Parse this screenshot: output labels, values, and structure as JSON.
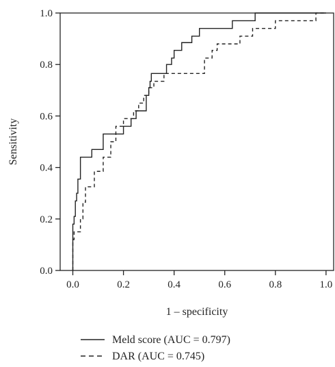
{
  "chart_data": {
    "type": "line",
    "title": "",
    "xlabel": "1 – specificity",
    "ylabel": "Sensitivity",
    "xlim": [
      -0.05,
      1.03
    ],
    "ylim": [
      0,
      1
    ],
    "xticks": [
      "0.0",
      "0.2",
      "0.4",
      "0.6",
      "0.8",
      "1.0"
    ],
    "yticks": [
      "0.0",
      "0.2",
      "0.4",
      "0.6",
      "0.8",
      "1.0"
    ],
    "grid": false,
    "legend_position": "bottom",
    "series": [
      {
        "name": "Meld score (AUC = 0.797)",
        "style": "solid",
        "color": "#222222",
        "x": [
          0.0,
          0.0,
          0.005,
          0.005,
          0.01,
          0.01,
          0.015,
          0.015,
          0.02,
          0.02,
          0.03,
          0.03,
          0.075,
          0.075,
          0.12,
          0.12,
          0.2,
          0.2,
          0.23,
          0.23,
          0.25,
          0.25,
          0.29,
          0.29,
          0.3,
          0.3,
          0.305,
          0.305,
          0.31,
          0.31,
          0.33,
          0.33,
          0.37,
          0.37,
          0.39,
          0.39,
          0.4,
          0.4,
          0.43,
          0.43,
          0.47,
          0.47,
          0.5,
          0.5,
          0.52,
          0.52,
          0.63,
          0.63,
          0.72,
          0.72,
          0.94,
          0.94,
          1.0
        ],
        "y": [
          0.0,
          0.18,
          0.18,
          0.21,
          0.21,
          0.27,
          0.27,
          0.3,
          0.3,
          0.355,
          0.355,
          0.44,
          0.44,
          0.47,
          0.47,
          0.53,
          0.53,
          0.56,
          0.56,
          0.59,
          0.59,
          0.62,
          0.62,
          0.68,
          0.68,
          0.71,
          0.71,
          0.735,
          0.735,
          0.765,
          0.765,
          0.765,
          0.765,
          0.8,
          0.8,
          0.825,
          0.825,
          0.855,
          0.855,
          0.885,
          0.885,
          0.91,
          0.91,
          0.94,
          0.94,
          0.94,
          0.94,
          0.97,
          0.97,
          1.0,
          1.0,
          1.0,
          1.0
        ]
      },
      {
        "name": "DAR (AUC = 0.745)",
        "style": "dashed",
        "color": "#222222",
        "x": [
          0.0,
          0.0,
          0.005,
          0.005,
          0.03,
          0.03,
          0.04,
          0.04,
          0.05,
          0.05,
          0.085,
          0.085,
          0.12,
          0.12,
          0.15,
          0.15,
          0.17,
          0.17,
          0.2,
          0.2,
          0.24,
          0.24,
          0.26,
          0.26,
          0.28,
          0.28,
          0.3,
          0.3,
          0.32,
          0.32,
          0.36,
          0.36,
          0.38,
          0.38,
          0.52,
          0.52,
          0.55,
          0.55,
          0.57,
          0.57,
          0.66,
          0.66,
          0.71,
          0.71,
          0.8,
          0.8,
          0.94,
          0.94,
          0.96,
          0.96,
          1.0
        ],
        "y": [
          0.0,
          0.12,
          0.12,
          0.15,
          0.15,
          0.2,
          0.2,
          0.265,
          0.265,
          0.325,
          0.325,
          0.385,
          0.385,
          0.44,
          0.44,
          0.5,
          0.5,
          0.56,
          0.56,
          0.59,
          0.59,
          0.62,
          0.62,
          0.65,
          0.65,
          0.68,
          0.68,
          0.71,
          0.71,
          0.735,
          0.735,
          0.765,
          0.765,
          0.765,
          0.765,
          0.825,
          0.825,
          0.855,
          0.855,
          0.88,
          0.88,
          0.91,
          0.91,
          0.94,
          0.94,
          0.97,
          0.97,
          0.97,
          0.97,
          1.0,
          1.0
        ]
      }
    ]
  }
}
